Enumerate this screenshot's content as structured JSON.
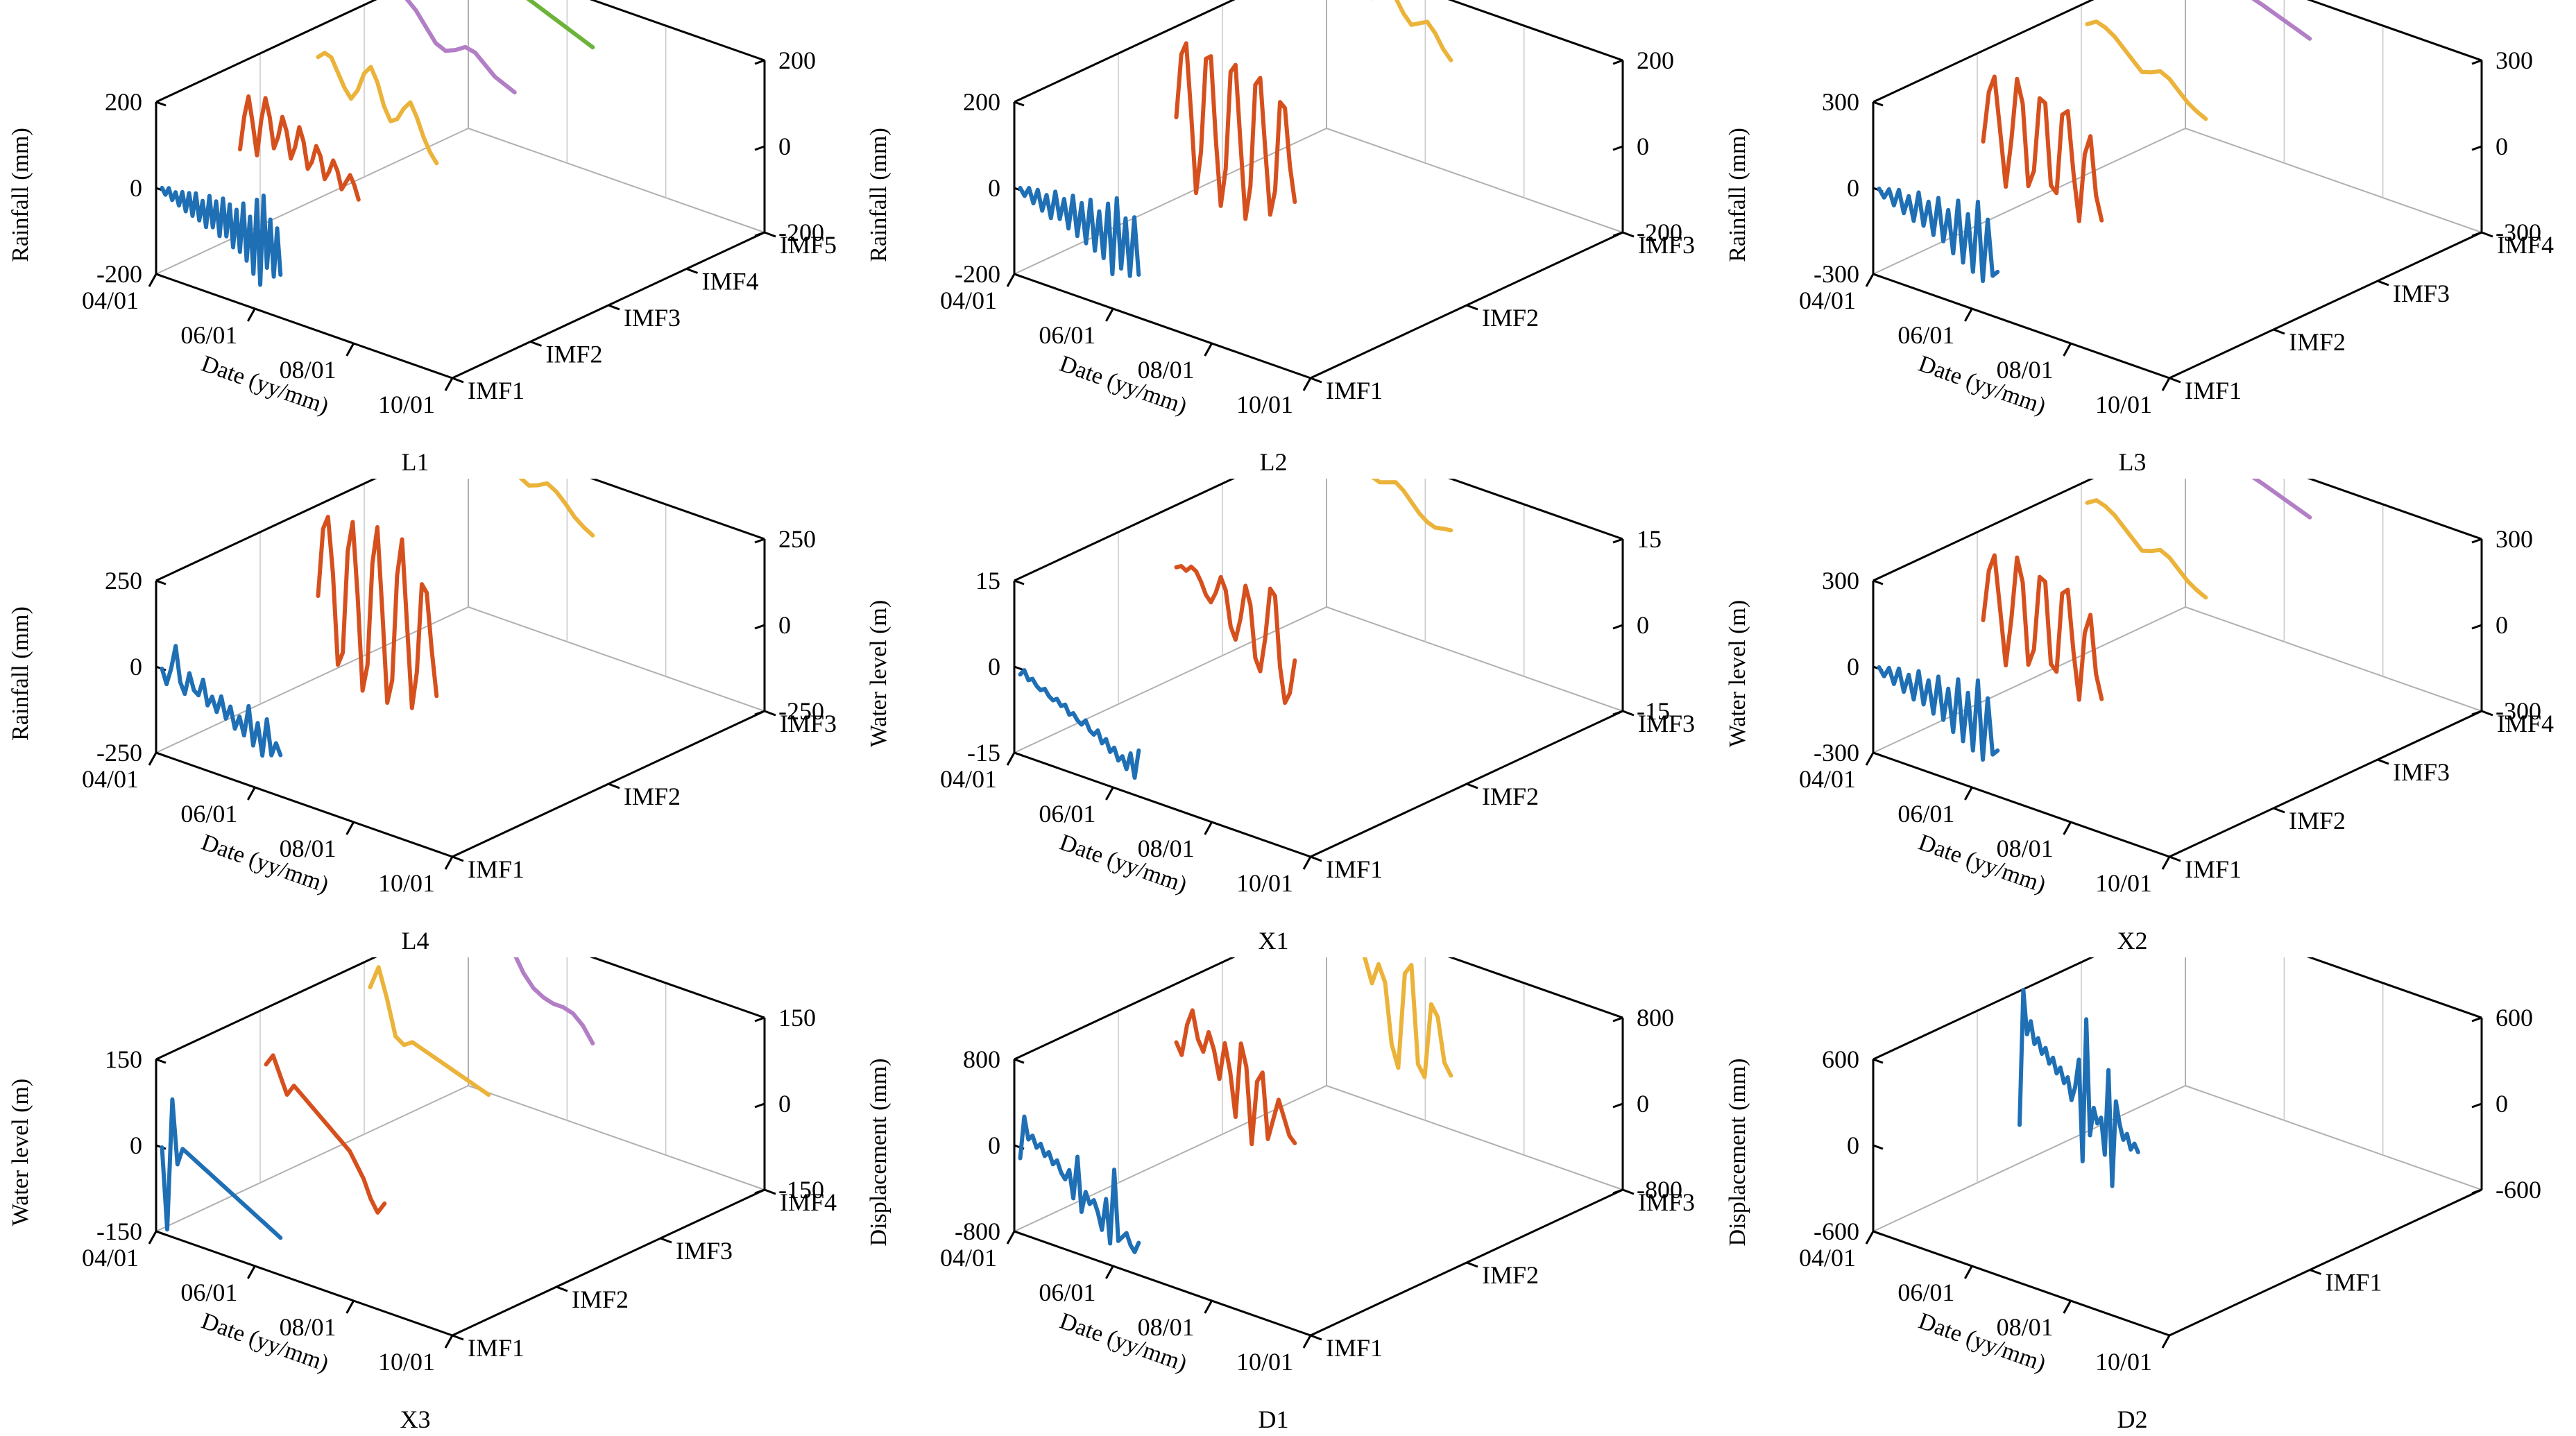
{
  "figure": {
    "date_ticks": [
      "04/01",
      "06/01",
      "08/01",
      "10/01"
    ],
    "date_axis_label": "Date (yy/mm)",
    "series_colors": [
      "#1f6fb5",
      "#d6501e",
      "#ebb33a",
      "#b27fc6",
      "#6cb33a"
    ]
  },
  "chart_data": [
    {
      "type": "line",
      "panel_label": "L1",
      "ylabel": "Rainfall (mm)",
      "yticks": [
        "-200",
        "0",
        "200"
      ],
      "ylim": [
        -200,
        200
      ],
      "x_axis": "date",
      "x_range": [
        "04/01",
        "10/01"
      ],
      "z_categories": [
        "IMF1",
        "IMF2",
        "IMF3",
        "IMF4",
        "IMF5"
      ],
      "series": [
        {
          "name": "IMF1",
          "values": [
            5,
            -8,
            10,
            -15,
            6,
            -22,
            12,
            -30,
            15,
            -35,
            20,
            -40,
            8,
            -50,
            25,
            -45,
            18,
            -60,
            30,
            -55,
            22,
            -75,
            15,
            -80,
            35,
            -95,
            10,
            -120,
            55,
            -140,
            70,
            -95,
            20,
            -110,
            5,
            -100
          ]
        },
        {
          "name": "IMF2",
          "values": [
            10,
            90,
            140,
            80,
            10,
            95,
            150,
            110,
            40,
            70,
            120,
            90,
            30,
            60,
            110,
            80,
            20,
            40,
            80,
            60,
            10,
            30,
            60,
            40,
            0,
            20,
            40,
            20,
            -10
          ]
        },
        {
          "name": "IMF3",
          "values": [
            140,
            155,
            150,
            120,
            90,
            70,
            95,
            140,
            160,
            130,
            80,
            50,
            60,
            90,
            110,
            80,
            40,
            10,
            -10
          ]
        },
        {
          "name": "IMF4",
          "values": [
            210,
            200,
            180,
            150,
            120,
            110,
            120,
            135,
            130,
            110,
            90,
            80,
            70
          ]
        },
        {
          "name": "IMF5",
          "values": [
            200,
            190,
            180,
            170,
            160,
            150,
            140,
            130,
            120,
            110,
            100,
            90
          ]
        }
      ]
    },
    {
      "type": "line",
      "panel_label": "L2",
      "ylabel": "Rainfall (mm)",
      "yticks": [
        "-200",
        "0",
        "200"
      ],
      "ylim": [
        -200,
        200
      ],
      "x_axis": "date",
      "x_range": [
        "04/01",
        "10/01"
      ],
      "z_categories": [
        "IMF1",
        "IMF2",
        "IMF3"
      ],
      "series": [
        {
          "name": "IMF1",
          "values": [
            5,
            -10,
            12,
            -20,
            15,
            -30,
            10,
            -40,
            25,
            -35,
            15,
            -50,
            30,
            -60,
            20,
            -70,
            35,
            -80,
            15,
            -90,
            40,
            -120,
            60,
            -100,
            20,
            -110,
            30,
            -100
          ]
        },
        {
          "name": "IMF2",
          "values": [
            0,
            150,
            180,
            20,
            -160,
            -60,
            160,
            170,
            -20,
            -170,
            -80,
            150,
            170,
            -10,
            -180,
            -100,
            140,
            160,
            0,
            -150,
            -90,
            120,
            110,
            -20,
            -100
          ]
        },
        {
          "name": "IMF3",
          "values": [
            200,
            215,
            205,
            180,
            150,
            140,
            160,
            175,
            160,
            130,
            110,
            120,
            130,
            110,
            80,
            60
          ]
        }
      ]
    },
    {
      "type": "line",
      "panel_label": "L3",
      "ylabel": "Rainfall (mm)",
      "yticks": [
        "-300",
        "0",
        "300"
      ],
      "ylim": [
        -300,
        300
      ],
      "x_axis": "date",
      "x_range": [
        "04/01",
        "10/01"
      ],
      "z_categories": [
        "IMF1",
        "IMF2",
        "IMF3",
        "IMF4"
      ],
      "series": [
        {
          "name": "IMF1",
          "values": [
            5,
            -20,
            15,
            -35,
            25,
            -50,
            15,
            -65,
            40,
            -70,
            20,
            -90,
            45,
            -100,
            15,
            -130,
            60,
            -150,
            25,
            -170,
            80,
            -190,
            30,
            -160,
            -140
          ]
        },
        {
          "name": "IMF2",
          "values": [
            0,
            180,
            240,
            60,
            -130,
            40,
            260,
            180,
            -100,
            -40,
            220,
            210,
            -70,
            -90,
            190,
            210,
            0,
            -160,
            80,
            150,
            -50,
            -130
          ]
        },
        {
          "name": "IMF3",
          "values": [
            240,
            260,
            250,
            230,
            200,
            170,
            140,
            150,
            165,
            150,
            120,
            90,
            70,
            55
          ]
        },
        {
          "name": "IMF4",
          "values": [
            300,
            290,
            275,
            262,
            250,
            238,
            225,
            210,
            195,
            180,
            165
          ]
        }
      ]
    },
    {
      "type": "line",
      "panel_label": "L4",
      "ylabel": "Rainfall (mm)",
      "yticks": [
        "-250",
        "0",
        "250"
      ],
      "ylim": [
        -250,
        250
      ],
      "x_axis": "date",
      "x_range": [
        "04/01",
        "10/01"
      ],
      "z_categories": [
        "IMF1",
        "IMF2",
        "IMF3"
      ],
      "series": [
        {
          "name": "IMF1",
          "values": [
            0,
            -40,
            10,
            80,
            -20,
            -50,
            15,
            -30,
            -40,
            10,
            -60,
            -30,
            -70,
            -20,
            -80,
            -40,
            -100,
            -60,
            -110,
            -20,
            -130,
            -60,
            -150,
            -40,
            -140,
            -100,
            -130
          ]
        },
        {
          "name": "IMF2",
          "values": [
            0,
            200,
            240,
            80,
            -180,
            -140,
            160,
            250,
            40,
            -230,
            -150,
            150,
            260,
            20,
            -240,
            -170,
            140,
            250,
            10,
            -230,
            -120,
            140,
            120,
            -40,
            -170
          ]
        },
        {
          "name": "IMF3",
          "values": [
            240,
            255,
            250,
            230,
            205,
            180,
            165,
            175,
            190,
            175,
            150,
            120,
            100,
            85
          ]
        }
      ]
    },
    {
      "type": "line",
      "panel_label": "X1",
      "ylabel": "Water level (m)",
      "yticks": [
        "-15",
        "0",
        "15"
      ],
      "ylim": [
        -15,
        15
      ],
      "x_axis": "date",
      "x_range": [
        "04/01",
        "10/01"
      ],
      "z_categories": [
        "IMF1",
        "IMF2",
        "IMF3"
      ],
      "series": [
        {
          "name": "IMF1",
          "values": [
            -1,
            0,
            -1.5,
            -1,
            -2,
            -2.5,
            -2,
            -3,
            -3.5,
            -3,
            -4,
            -3.5,
            -5,
            -4.5,
            -5.5,
            -6,
            -5,
            -6.5,
            -7,
            -6,
            -8,
            -7,
            -9,
            -8,
            -10,
            -9,
            -11,
            -8,
            -12,
            -7
          ]
        },
        {
          "name": "IMF2",
          "values": [
            5,
            5.5,
            5,
            6,
            5.5,
            4,
            2,
            1,
            3,
            6,
            4,
            -2,
            -4,
            0,
            6,
            3,
            -6,
            -8,
            -2,
            7,
            6,
            -6,
            -12,
            -10,
            -4
          ]
        },
        {
          "name": "IMF3",
          "values": [
            13,
            12,
            13,
            12.5,
            11.5,
            10.5,
            10,
            10.5,
            11,
            10,
            8.5,
            7,
            6,
            5.5,
            5.8,
            6
          ]
        }
      ]
    },
    {
      "type": "line",
      "panel_label": "X2",
      "ylabel": "Water level (m)",
      "yticks": [
        "-300",
        "0",
        "300"
      ],
      "ylim": [
        -300,
        300
      ],
      "x_axis": "date",
      "x_range": [
        "04/01",
        "10/01"
      ],
      "z_categories": [
        "IMF1",
        "IMF2",
        "IMF3",
        "IMF4"
      ],
      "series": [
        {
          "name": "IMF1",
          "values": [
            5,
            -20,
            15,
            -35,
            25,
            -50,
            15,
            -65,
            40,
            -70,
            20,
            -90,
            45,
            -100,
            15,
            -130,
            60,
            -150,
            25,
            -170,
            80,
            -190,
            30,
            -160,
            -140
          ]
        },
        {
          "name": "IMF2",
          "values": [
            0,
            180,
            240,
            60,
            -130,
            40,
            260,
            180,
            -100,
            -40,
            220,
            210,
            -70,
            -90,
            190,
            210,
            0,
            -160,
            80,
            150,
            -50,
            -130
          ]
        },
        {
          "name": "IMF3",
          "values": [
            240,
            260,
            250,
            230,
            200,
            170,
            140,
            150,
            165,
            150,
            120,
            90,
            70,
            55
          ]
        },
        {
          "name": "IMF4",
          "values": [
            300,
            290,
            275,
            262,
            250,
            238,
            225,
            210,
            195,
            180,
            165
          ]
        }
      ]
    },
    {
      "type": "line",
      "panel_label": "X3",
      "ylabel": "Water level (m)",
      "yticks": [
        "-150",
        "0",
        "150"
      ],
      "ylim": [
        -150,
        150
      ],
      "x_axis": "date",
      "x_range": [
        "04/01",
        "10/01"
      ],
      "z_categories": [
        "IMF1",
        "IMF2",
        "IMF3",
        "IMF4"
      ],
      "series": [
        {
          "name": "IMF1",
          "values": [
            0,
            -140,
            90,
            -20,
            10,
            5,
            0,
            -5,
            -10,
            -15,
            -20,
            -25,
            -30,
            -35,
            -40,
            -45,
            -50,
            -55,
            -60,
            -65,
            -70,
            -75,
            -80,
            -85
          ]
        },
        {
          "name": "IMF2",
          "values": [
            60,
            80,
            50,
            20,
            40,
            30,
            20,
            10,
            0,
            -10,
            -20,
            -30,
            -40,
            -60,
            -80,
            -110,
            -130,
            -110
          ]
        },
        {
          "name": "IMF3",
          "values": [
            110,
            150,
            100,
            40,
            30,
            40,
            35,
            30,
            25,
            20,
            15,
            10,
            5,
            0,
            -5
          ]
        },
        {
          "name": "IMF4",
          "values": [
            180,
            260,
            220,
            160,
            110,
            80,
            60,
            50,
            45,
            45,
            40,
            25,
            0
          ]
        }
      ]
    },
    {
      "type": "line",
      "panel_label": "D1",
      "ylabel": "Displacement (mm)",
      "yticks": [
        "-800",
        "0",
        "800"
      ],
      "ylim": [
        -800,
        800
      ],
      "x_axis": "date",
      "x_range": [
        "04/01",
        "10/01"
      ],
      "z_categories": [
        "IMF1",
        "IMF2",
        "IMF3"
      ],
      "series": [
        {
          "name": "IMF1",
          "values": [
            -100,
            300,
            100,
            150,
            50,
            100,
            0,
            50,
            -50,
            0,
            -100,
            -150,
            -50,
            -300,
            100,
            -400,
            -200,
            -300,
            -250,
            -350,
            -500,
            -200,
            -600,
            100,
            -550,
            -500,
            -450,
            -550,
            -600,
            -500
          ]
        },
        {
          "name": "IMF2",
          "values": [
            300,
            200,
            500,
            650,
            400,
            300,
            500,
            350,
            100,
            450,
            200,
            -200,
            500,
            300,
            -400,
            200,
            300,
            -300,
            -100,
            100,
            -50,
            -200,
            -250
          ]
        },
        {
          "name": "IMF3",
          "values": [
            500,
            800,
            700,
            600,
            650,
            500,
            300,
            500,
            350,
            -200,
            -400,
            500,
            600,
            -300,
            -400,
            300,
            200,
            -200,
            -300
          ]
        }
      ]
    },
    {
      "type": "line",
      "panel_label": "D2",
      "ylabel": "Displacement (mm)",
      "yticks": [
        "-600",
        "0",
        "600"
      ],
      "ylim": [
        -600,
        600
      ],
      "x_axis": "date",
      "x_range": [
        "04/01",
        "10/01"
      ],
      "z_categories": [
        "IMF1"
      ],
      "series": [
        {
          "name": "IMF1",
          "values": [
            -300,
            650,
            350,
            450,
            300,
            350,
            250,
            300,
            200,
            250,
            150,
            200,
            100,
            150,
            0,
            100,
            300,
            -400,
            600,
            -200,
            0,
            -100,
            -50,
            -300,
            300,
            -500,
            100,
            -50,
            -150,
            -100,
            -200,
            -150,
            -200
          ]
        }
      ]
    }
  ]
}
